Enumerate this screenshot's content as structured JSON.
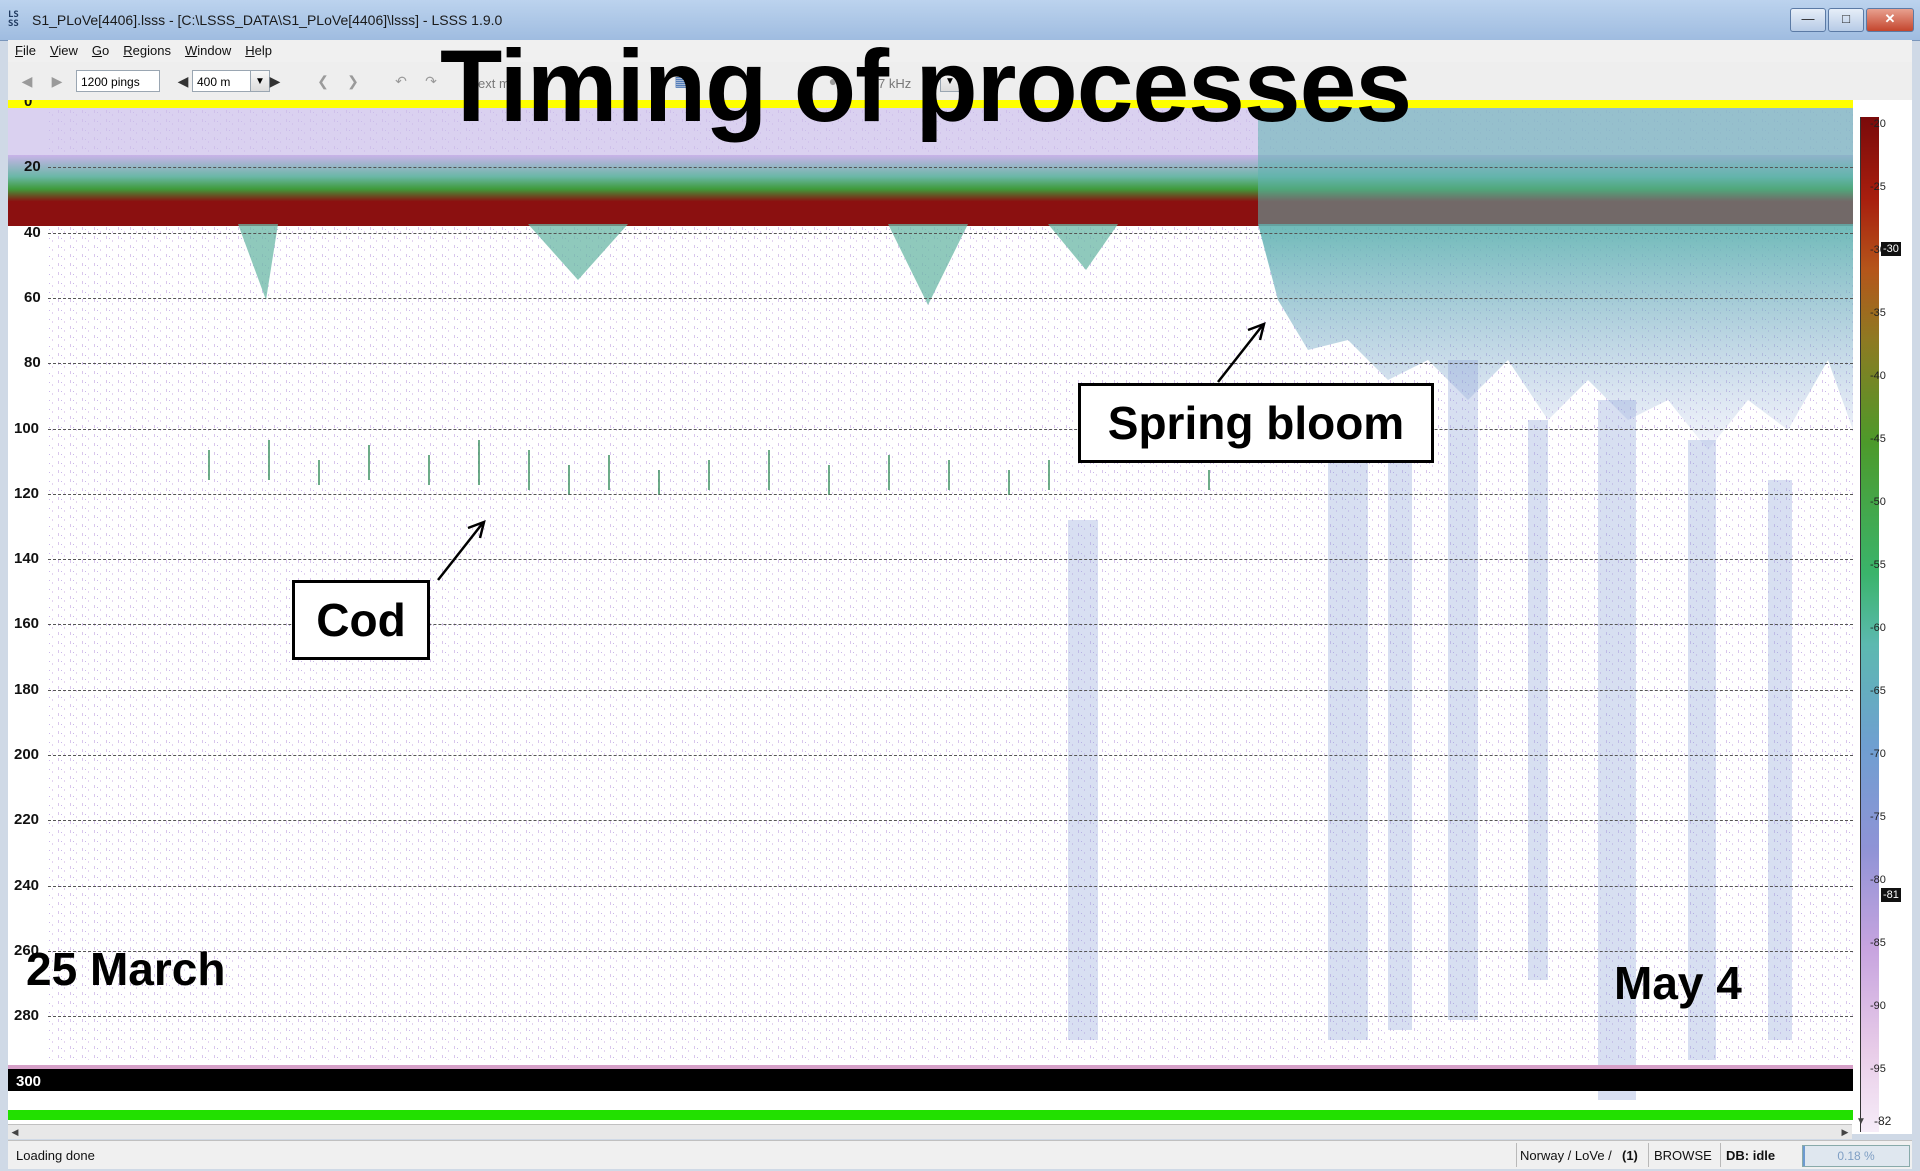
{
  "window": {
    "title": "S1_PLoVe[4406].lsss - [C:\\LSSS_DATA\\S1_PLoVe[4406]\\lsss] - LSSS 1.9.0",
    "app_icon_text": "LS SS"
  },
  "menu": [
    "File",
    "View",
    "Go",
    "Regions",
    "Window",
    "Help"
  ],
  "toolbar": {
    "pings_value": "1200 pings",
    "range_value": "400 m",
    "partial_text": "ext m",
    "partial_text2": "7 kHz"
  },
  "echogram": {
    "depth_ticks": [
      "0",
      "20",
      "40",
      "60",
      "80",
      "100",
      "120",
      "140",
      "160",
      "180",
      "200",
      "220",
      "240",
      "260",
      "280",
      "300"
    ],
    "colorbar_ticks": [
      "-20",
      "-25",
      "-30",
      "-35",
      "-40",
      "-45",
      "-50",
      "-55",
      "-60",
      "-65",
      "-70",
      "-75",
      "-80",
      "-85",
      "-90",
      "-95"
    ],
    "colorbar_upper_marker": "-30",
    "colorbar_lower_marker": "-81",
    "colorbar_bottom_value": "-82"
  },
  "slide": {
    "title": "Timing of processes",
    "callout_cod": "Cod",
    "callout_spring": "Spring bloom",
    "date_start": "25 March",
    "date_end": "May 4"
  },
  "status": {
    "message": "Loading done",
    "location": "Norway / LoVe /",
    "count": "(1)",
    "mode": "BROWSE",
    "db": "DB: idle",
    "progress": "0.18 %"
  },
  "colors": {
    "surface_line": "#ffff00",
    "scattering_layer": "#8b1010",
    "bottom_band": "#000000",
    "bottom_line": "#22e000",
    "spring_bloom": "#5fb3b0"
  }
}
